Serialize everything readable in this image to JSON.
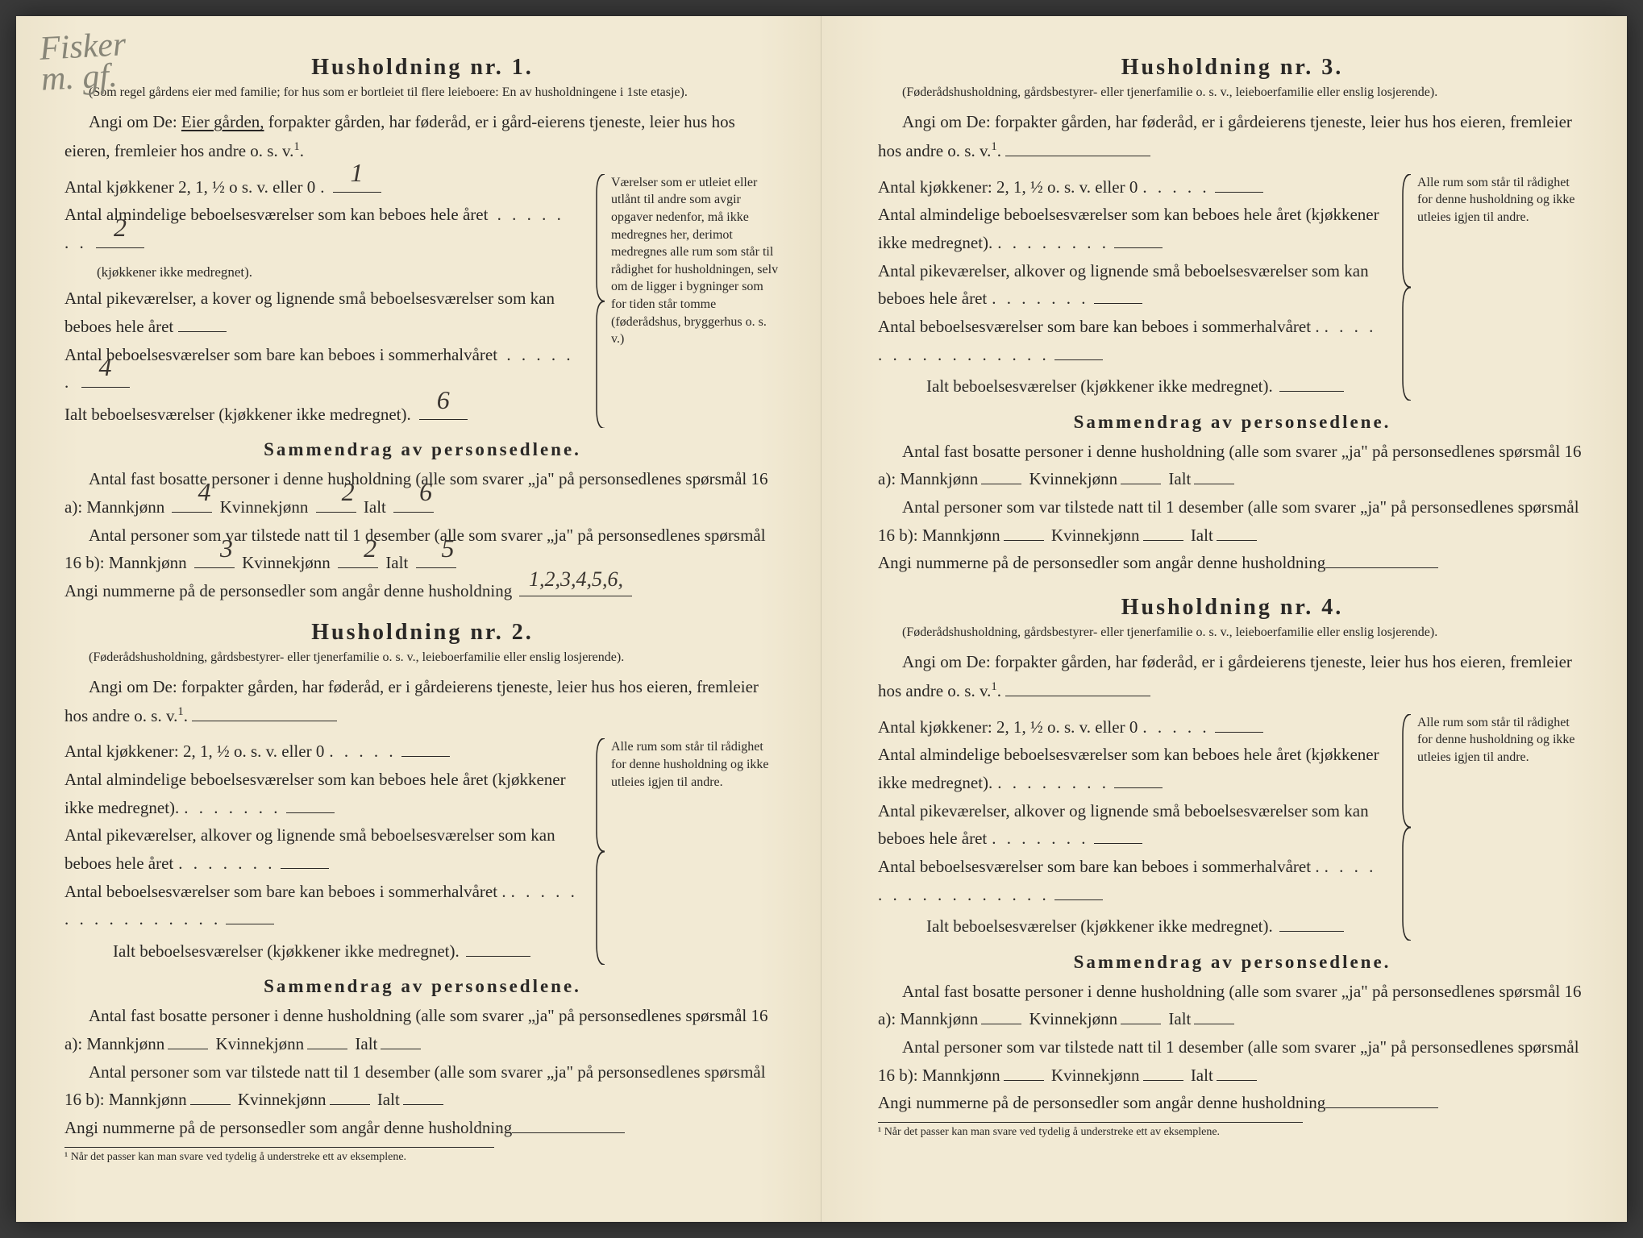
{
  "handwriting_top": "Fisker\nm. gf.",
  "h1": {
    "title": "Husholdning nr. 1.",
    "fine": "(Som regel gårdens eier med familie; for hus som er bortleiet til flere leieboere: En av husholdningene i 1ste etasje).",
    "angi_prefix": "Angi om De:",
    "angi_underlined": "Eier gården,",
    "angi_rest": "forpakter gården, har føderåd, er i gård-eierens tjeneste, leier hus hos eieren, fremleier hos andre o. s. v.",
    "angi_sup": "1",
    "rows": {
      "r1": "Antal kjøkkener 2, 1, ½ o s. v. eller 0",
      "r1v": "1",
      "r2": "Antal almindelige beboelsesværelser som kan beboes hele året",
      "r2_sub": "(kjøkkener ikke medregnet).",
      "r2v": "2",
      "r3": "Antal pikeværelser, a kover og lignende små beboelsesværelser som kan beboes hele året",
      "r3v": "",
      "r4": "Antal beboelsesværelser som bare kan beboes i sommerhalvåret",
      "r4v": "4",
      "r5": "Ialt beboelsesværelser (kjøkkener ikke medregnet).",
      "r5v": "6"
    },
    "side": "Værelser som er utleiet eller utlånt til andre som avgir opgaver nedenfor, må ikke medregnes her, derimot medregnes alle rum som står til rådighet for husholdningen, selv om de ligger i bygninger som for tiden står tomme (føderådshus, bryggerhus o. s. v.)",
    "summary_title": "Sammendrag av personsedlene.",
    "s1": "Antal fast bosatte personer i denne husholdning (alle som svarer „ja\" på personsedlenes spørsmål 16 a): Mannkjønn",
    "s1_m": "4",
    "s1_k_label": "Kvinnekjønn",
    "s1_k": "2",
    "s1_i_label": "Ialt",
    "s1_i": "6",
    "s2": "Antal personer som var tilstede natt til 1 desember (alle som svarer „ja\" på personsedlenes spørsmål 16 b): Mannkjønn",
    "s2_m": "3",
    "s2_k": "2",
    "s2_i": "5",
    "nummer": "Angi nummerne på de personsedler som angår denne husholdning",
    "nummer_v": "1,2,3,4,5,6,"
  },
  "h2": {
    "title": "Husholdning nr. 2.",
    "fine": "(Føderådshusholdning, gårdsbestyrer- eller tjenerfamilie o. s. v., leieboerfamilie eller enslig losjerende).",
    "angi": "Angi om De: forpakter gården, har føderåd, er i gårdeierens tjeneste, leier hus hos eieren, fremleier hos andre o. s. v.",
    "rows": {
      "r1": "Antal kjøkkener: 2, 1, ½ o. s. v. eller 0",
      "r2": "Antal almindelige beboelsesværelser som kan beboes hele året (kjøkkener ikke medregnet).",
      "r3": "Antal pikeværelser, alkover og lignende små beboelsesværelser som kan beboes hele året",
      "r4": "Antal beboelsesværelser som bare kan beboes i sommerhalvåret .",
      "r5": "Ialt beboelsesværelser (kjøkkener ikke medregnet)."
    },
    "side": "Alle rum som står til rådighet for denne husholdning og ikke utleies igjen til andre.",
    "summary_title": "Sammendrag av personsedlene.",
    "s1": "Antal fast bosatte personer i denne husholdning (alle som svarer „ja\" på personsedlenes spørsmål 16 a): Mannkjønn",
    "s1_k_label": "Kvinnekjønn",
    "s1_i_label": "Ialt",
    "s2": "Antal personer som var tilstede natt til 1 desember (alle som svarer „ja\" på personsedlenes spørsmål 16 b): Mannkjønn",
    "nummer": "Angi nummerne på de personsedler som angår denne husholdning",
    "footnote": "¹ Når det passer kan man svare ved tydelig å understreke ett av eksemplene."
  },
  "h3": {
    "title": "Husholdning nr. 3.",
    "fine": "(Føderådshusholdning, gårdsbestyrer- eller tjenerfamilie o. s. v., leieboerfamilie eller enslig losjerende).",
    "angi": "Angi om De: forpakter gården, har føderåd, er i gårdeierens tjeneste, leier hus hos eieren, fremleier hos andre o. s. v.",
    "rows": {
      "r1": "Antal kjøkkener: 2, 1, ½ o. s. v. eller 0",
      "r2": "Antal almindelige beboelsesværelser som kan beboes hele året (kjøkkener ikke medregnet).",
      "r3": "Antal pikeværelser, alkover og lignende små beboelsesværelser som kan beboes hele året",
      "r4": "Antal beboelsesværelser som bare kan beboes i sommerhalvåret .",
      "r5": "Ialt beboelsesværelser (kjøkkener ikke medregnet)."
    },
    "side": "Alle rum som står til rådighet for denne husholdning og ikke utleies igjen til andre.",
    "summary_title": "Sammendrag av personsedlene.",
    "s1": "Antal fast bosatte personer i denne husholdning (alle som svarer „ja\" på personsedlenes spørsmål 16 a): Mannkjønn",
    "s1_k_label": "Kvinnekjønn",
    "s1_i_label": "Ialt",
    "s2": "Antal personer som var tilstede natt til 1 desember (alle som svarer „ja\" på personsedlenes spørsmål 16 b): Mannkjønn",
    "nummer": "Angi nummerne på de personsedler som angår denne husholdning"
  },
  "h4": {
    "title": "Husholdning nr. 4.",
    "fine": "(Føderådshusholdning, gårdsbestyrer- eller tjenerfamilie o. s. v., leieboerfamilie eller enslig losjerende).",
    "angi": "Angi om De: forpakter gården, har føderåd, er i gårdeierens tjeneste, leier hus hos eieren, fremleier hos andre o. s. v.",
    "rows": {
      "r1": "Antal kjøkkener: 2, 1, ½ o. s. v. eller 0",
      "r2": "Antal almindelige beboelsesværelser som kan beboes hele året (kjøkkener ikke medregnet).",
      "r3": "Antal pikeværelser, alkover og lignende små beboelsesværelser som kan beboes hele året",
      "r4": "Antal beboelsesværelser som bare kan beboes i sommerhalvåret .",
      "r5": "Ialt beboelsesværelser (kjøkkener ikke medregnet)."
    },
    "side": "Alle rum som står til rådighet for denne husholdning og ikke utleies igjen til andre.",
    "summary_title": "Sammendrag av personsedlene.",
    "s1": "Antal fast bosatte personer i denne husholdning (alle som svarer „ja\" på personsedlenes spørsmål 16 a): Mannkjønn",
    "s1_k_label": "Kvinnekjønn",
    "s1_i_label": "Ialt",
    "s2": "Antal personer som var tilstede natt til 1 desember (alle som svarer „ja\" på personsedlenes spørsmål 16 b): Mannkjønn",
    "nummer": "Angi nummerne på de personsedler som angår denne husholdning",
    "footnote": "¹ Når det passer kan man svare ved tydelig å understreke ett av eksemplene."
  }
}
